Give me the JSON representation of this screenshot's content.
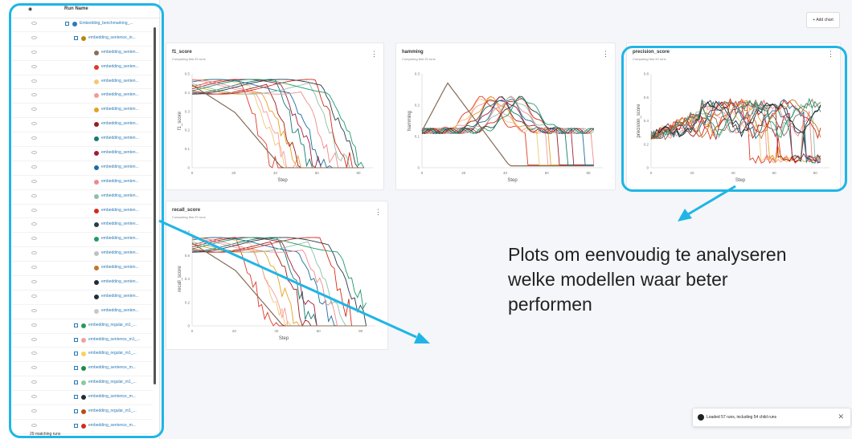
{
  "sidebar": {
    "column_header": "Run Name",
    "rows": [
      {
        "label": "Embedding_benchmarking_...",
        "kind": "parent",
        "color": "#2a7ab8"
      },
      {
        "label": "embedding_sentence_in...",
        "kind": "parent",
        "color": "#b8860b"
      },
      {
        "label": "embedding_senten...",
        "kind": "child",
        "color": "#8a6f5a"
      },
      {
        "label": "embedding_senten...",
        "kind": "child",
        "color": "#e03a2a"
      },
      {
        "label": "embedding_senten...",
        "kind": "child",
        "color": "#f2c777"
      },
      {
        "label": "embedding_senten...",
        "kind": "child",
        "color": "#f39b9b"
      },
      {
        "label": "embedding_senten...",
        "kind": "child",
        "color": "#e8a020"
      },
      {
        "label": "embedding_senten...",
        "kind": "child",
        "color": "#9c1c1c"
      },
      {
        "label": "embedding_senten...",
        "kind": "child",
        "color": "#157a72"
      },
      {
        "label": "embedding_senten...",
        "kind": "child",
        "color": "#a01c3c"
      },
      {
        "label": "embedding_senten...",
        "kind": "child",
        "color": "#1a6e9e"
      },
      {
        "label": "embedding_senten...",
        "kind": "child",
        "color": "#ef8a8a"
      },
      {
        "label": "embedding_senten...",
        "kind": "child",
        "color": "#8fbfa6"
      },
      {
        "label": "embedding_senten...",
        "kind": "child",
        "color": "#d42a1a"
      },
      {
        "label": "embedding_senten...",
        "kind": "child",
        "color": "#2a3b4a"
      },
      {
        "label": "embedding_senten...",
        "kind": "child",
        "color": "#1f9a6a"
      },
      {
        "label": "embedding_senten...",
        "kind": "child",
        "color": "#c0c0c0"
      },
      {
        "label": "embedding_senten...",
        "kind": "child",
        "color": "#c0782a"
      },
      {
        "label": "embedding_senten...",
        "kind": "child",
        "color": "#222c3a"
      },
      {
        "label": "embedding_senten...",
        "kind": "child",
        "color": "#1c3040"
      },
      {
        "label": "embedding_senten...",
        "kind": "child",
        "color": "#c8c8c8"
      },
      {
        "label": "embedding_regular_m1_...",
        "kind": "parent",
        "color": "#2a9a5a"
      },
      {
        "label": "embedding_sentence_m1_...",
        "kind": "parent",
        "color": "#f2a0a0"
      },
      {
        "label": "embedding_regular_m1_...",
        "kind": "parent",
        "color": "#f5d35a"
      },
      {
        "label": "embedding_sentence_m...",
        "kind": "parent",
        "color": "#1f8a4a"
      },
      {
        "label": "embedding_regular_m1_...",
        "kind": "parent",
        "color": "#8fc8a0"
      },
      {
        "label": "embedding_sentence_m...",
        "kind": "parent",
        "color": "#222c3a"
      },
      {
        "label": "embedding_regular_m1_...",
        "kind": "parent",
        "color": "#b84a1a"
      },
      {
        "label": "embedding_sentence_m...",
        "kind": "parent",
        "color": "#d42a1a"
      }
    ],
    "footer": "29 matching runs"
  },
  "toolbar": {
    "add_chart_label": "+ Add chart"
  },
  "charts": {
    "f1": {
      "title": "f1_score",
      "subtitle": "Comparing first 20 runs",
      "ylabel": "f1_score",
      "xlabel": "Step",
      "yticks": [
        "0.5",
        "0.4",
        "0.3",
        "0.2",
        "0.1",
        "0"
      ],
      "xticks": [
        "0",
        "20",
        "40",
        "60",
        "80"
      ]
    },
    "hamming": {
      "title": "hamming",
      "subtitle": "Comparing first 20 runs",
      "ylabel": "hamming",
      "xlabel": "Step",
      "yticks": [
        "0.3",
        "0.2",
        "0.1",
        "0"
      ],
      "xticks": [
        "0",
        "20",
        "40",
        "60",
        "80"
      ]
    },
    "precision": {
      "title": "precision_score",
      "subtitle": "Comparing first 20 runs",
      "ylabel": "precision_score",
      "xlabel": "Step",
      "yticks": [
        "0.8",
        "0.6",
        "0.4",
        "0.2",
        "0"
      ],
      "xticks": [
        "0",
        "20",
        "40",
        "60",
        "80"
      ]
    },
    "recall": {
      "title": "recall_score",
      "subtitle": "Comparing first 20 runs",
      "ylabel": "recall_score",
      "xlabel": "Step",
      "yticks": [
        "0.8",
        "0.6",
        "0.4",
        "0.2",
        "0"
      ],
      "xticks": [
        "0",
        "20",
        "40",
        "60",
        "80"
      ]
    }
  },
  "annotation": {
    "text": "Plots om eenvoudig te analyseren welke modellen waar beter performen",
    "accent": "#1fb5e6"
  },
  "toast": {
    "text": "Loaded 57 runs, including 54 child runs"
  },
  "palette": [
    "#e03a2a",
    "#f2c777",
    "#f39b9b",
    "#e8a020",
    "#9c1c1c",
    "#157a72",
    "#a01c3c",
    "#1a6e9e",
    "#ef8a8a",
    "#8fbfa6",
    "#d42a1a",
    "#2a3b4a",
    "#1f9a6a",
    "#c0782a",
    "#222c3a",
    "#8a6f5a"
  ]
}
